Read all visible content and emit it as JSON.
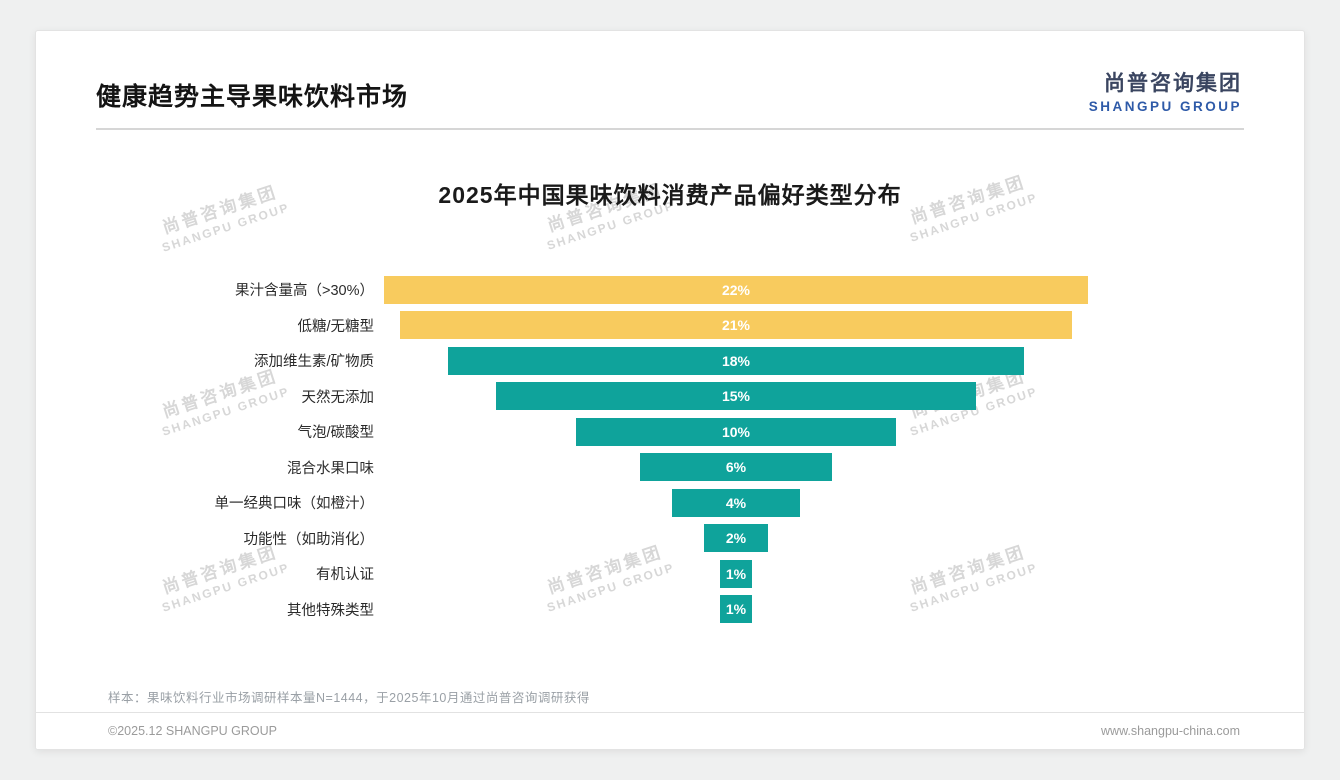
{
  "header": {
    "title": "健康趋势主导果味饮料市场"
  },
  "logo": {
    "cn": "尚普咨询集团",
    "en": "SHANGPU GROUP"
  },
  "watermark": {
    "cn": "尚普咨询集团",
    "en": "SHANGPU GROUP"
  },
  "chart_data": {
    "type": "bar",
    "subtype": "horizontal-centered-funnel",
    "title": "2025年中国果味饮料消费产品偏好类型分布",
    "categories": [
      "果汁含量高（>30%）",
      "低糖/无糖型",
      "添加维生素/矿物质",
      "天然无添加",
      "气泡/碳酸型",
      "混合水果口味",
      "单一经典口味（如橙汁）",
      "功能性（如助消化）",
      "有机认证",
      "其他特殊类型"
    ],
    "values": [
      22,
      21,
      18,
      15,
      10,
      6,
      4,
      2,
      1,
      1
    ],
    "unit": "%",
    "xlim": [
      0,
      22
    ],
    "grid": false,
    "legend": "none",
    "colors": {
      "highlight": "#F8CB5E",
      "normal": "#0FA39B"
    },
    "highlight_count": 2
  },
  "footnote": "样本：果味饮料行业市场调研样本量N=1444，于2025年10月通过尚普咨询调研获得",
  "footer": {
    "left": "©2025.12 SHANGPU GROUP",
    "right": "www.shangpu-china.com"
  }
}
